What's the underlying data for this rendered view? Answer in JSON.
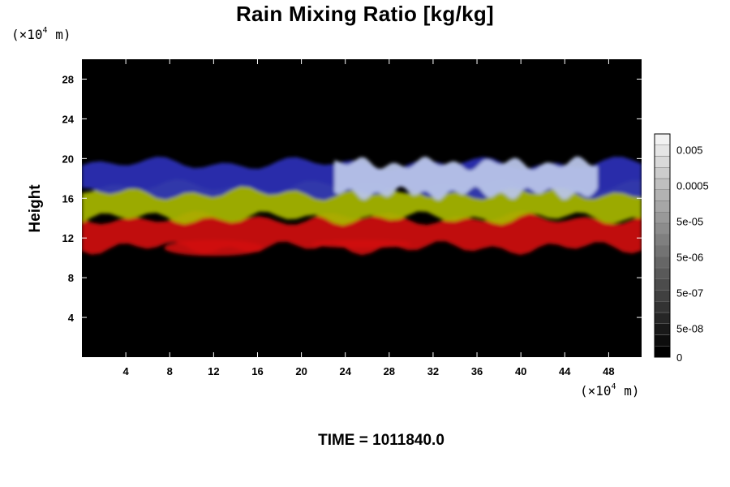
{
  "title": "Rain Mixing Ratio [kg/kg]",
  "footer": "TIME = 1011840.0",
  "units": {
    "y_prefix": "(×10",
    "y_exp": "4",
    "y_suffix": " m)",
    "x_prefix": "(×10",
    "x_exp": "4",
    "x_suffix": " m)"
  },
  "chart_data": {
    "type": "heatmap",
    "title": "Rain Mixing Ratio [kg/kg]",
    "xlabel": "",
    "ylabel": "Height",
    "x_unit": "(×10^4 m)",
    "y_unit": "(×10^4 m)",
    "xlim": [
      0,
      51
    ],
    "ylim": [
      0,
      30
    ],
    "x_ticks": [
      4,
      8,
      12,
      16,
      20,
      24,
      28,
      32,
      36,
      40,
      44,
      48
    ],
    "y_ticks": [
      4,
      8,
      12,
      16,
      20,
      24,
      28
    ],
    "background_color": "#000000",
    "bands": [
      {
        "name": "red",
        "color": "#d01010",
        "y_bottom": 11.0,
        "y_top": 14.0,
        "x_segments": [
          [
            0,
            51
          ]
        ],
        "patches": [
          {
            "x": [
              7.5,
              16.5
            ],
            "y": [
              10.2,
              11.8
            ]
          },
          {
            "x": [
              21,
              30
            ],
            "y": [
              11.0,
              11.8
            ]
          }
        ]
      },
      {
        "name": "yellow",
        "color": "#a8b800",
        "y_bottom": 14.0,
        "y_top": 17.2,
        "x_segments": [
          [
            0,
            51
          ]
        ]
      },
      {
        "name": "blue",
        "color": "#2a2fb8",
        "y_bottom": 16.5,
        "y_top": 19.5,
        "x_segments": [
          [
            0,
            51
          ]
        ]
      },
      {
        "name": "light-blue",
        "color": "#b8c4e8",
        "y_bottom": 16.5,
        "y_top": 19.5,
        "x_segments": [
          [
            23,
            47
          ]
        ]
      }
    ],
    "colorbar": {
      "labels": [
        "0.005",
        "0.0005",
        "5e-05",
        "5e-06",
        "5e-07",
        "5e-08",
        "0"
      ],
      "label_positions": [
        0.93,
        0.77,
        0.61,
        0.45,
        0.29,
        0.13,
        0.0
      ],
      "segments": 20,
      "color_min": "#000000",
      "color_max": "#f2f2f2"
    }
  }
}
